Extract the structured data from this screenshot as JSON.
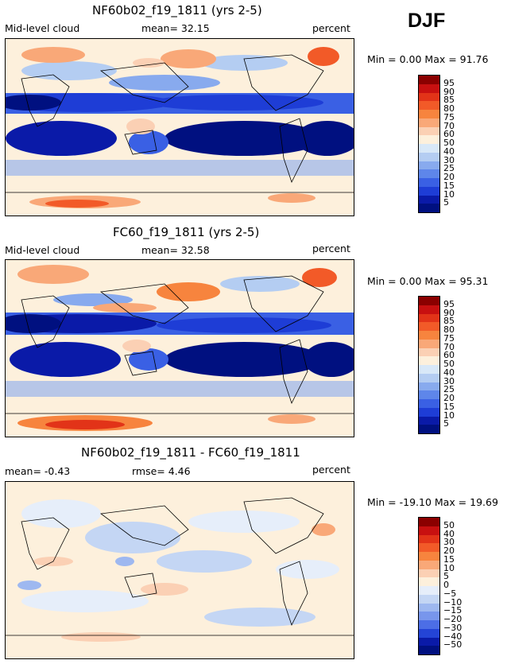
{
  "season": "DJF",
  "panels": [
    {
      "title": "NF60b02_f19_1811 (yrs 2-5)",
      "left_text": "Mid-level cloud",
      "center_text": "mean=  32.15",
      "right_text": "percent",
      "minmax": "Min =   0.00 Max =  91.76",
      "cbar_labels": [
        "95",
        "90",
        "85",
        "80",
        "75",
        "70",
        "60",
        "50",
        "40",
        "30",
        "25",
        "20",
        "15",
        "10",
        "5"
      ],
      "cbar_colors": [
        "#8b0000",
        "#c81010",
        "#e23318",
        "#f25a28",
        "#f7843e",
        "#f9a878",
        "#fbd0b4",
        "#fdf0dc",
        "#d8e8f8",
        "#b4cdf2",
        "#88aaee",
        "#5e86ea",
        "#3a60e4",
        "#1e3dd6",
        "#0a1aa8",
        "#001080"
      ]
    },
    {
      "title": "FC60_f19_1811 (yrs 2-5)",
      "left_text": "Mid-level cloud",
      "center_text": "mean=  32.58",
      "right_text": "percent",
      "minmax": "Min =   0.00 Max =  95.31",
      "cbar_labels": [
        "95",
        "90",
        "85",
        "80",
        "75",
        "70",
        "60",
        "50",
        "40",
        "30",
        "25",
        "20",
        "15",
        "10",
        "5"
      ],
      "cbar_colors": [
        "#8b0000",
        "#c81010",
        "#e23318",
        "#f25a28",
        "#f7843e",
        "#f9a878",
        "#fbd0b4",
        "#fdf0dc",
        "#d8e8f8",
        "#b4cdf2",
        "#88aaee",
        "#5e86ea",
        "#3a60e4",
        "#1e3dd6",
        "#0a1aa8",
        "#001080"
      ]
    },
    {
      "title": "NF60b02_f19_1811 - FC60_f19_1811",
      "left_text": "mean=  -0.43",
      "center_text": "rmse=   4.46",
      "right_text": "percent",
      "minmax": "Min = -19.10 Max =  19.69",
      "cbar_labels": [
        "50",
        "40",
        "30",
        "20",
        "15",
        "10",
        "5",
        "0",
        "−5",
        "−10",
        "−15",
        "−20",
        "−30",
        "−40",
        "−50"
      ],
      "cbar_colors": [
        "#8b0000",
        "#c81010",
        "#e23318",
        "#f25a28",
        "#f7843e",
        "#f9a878",
        "#fbd0b4",
        "#fdf0dc",
        "#e6eefa",
        "#c4d6f4",
        "#9eb8f0",
        "#7896ec",
        "#4c6ee6",
        "#2444d6",
        "#0a1aa8",
        "#001080"
      ]
    }
  ],
  "chart_data": [
    {
      "type": "heatmap",
      "title": "NF60b02_f19_1811 (yrs 2-5)",
      "variable": "Mid-level cloud",
      "units": "percent",
      "mean": 32.15,
      "min": 0.0,
      "max": 91.76,
      "contour_levels": [
        5,
        10,
        15,
        20,
        25,
        30,
        40,
        50,
        60,
        70,
        75,
        80,
        85,
        90,
        95
      ]
    },
    {
      "type": "heatmap",
      "title": "FC60_f19_1811 (yrs 2-5)",
      "variable": "Mid-level cloud",
      "units": "percent",
      "mean": 32.58,
      "min": 0.0,
      "max": 95.31,
      "contour_levels": [
        5,
        10,
        15,
        20,
        25,
        30,
        40,
        50,
        60,
        70,
        75,
        80,
        85,
        90,
        95
      ]
    },
    {
      "type": "heatmap",
      "title": "NF60b02_f19_1811 - FC60_f19_1811",
      "variable": "difference",
      "units": "percent",
      "mean": -0.43,
      "rmse": 4.46,
      "min": -19.1,
      "max": 19.69,
      "contour_levels": [
        -50,
        -40,
        -30,
        -20,
        -15,
        -10,
        -5,
        0,
        5,
        10,
        15,
        20,
        30,
        40,
        50
      ]
    }
  ]
}
